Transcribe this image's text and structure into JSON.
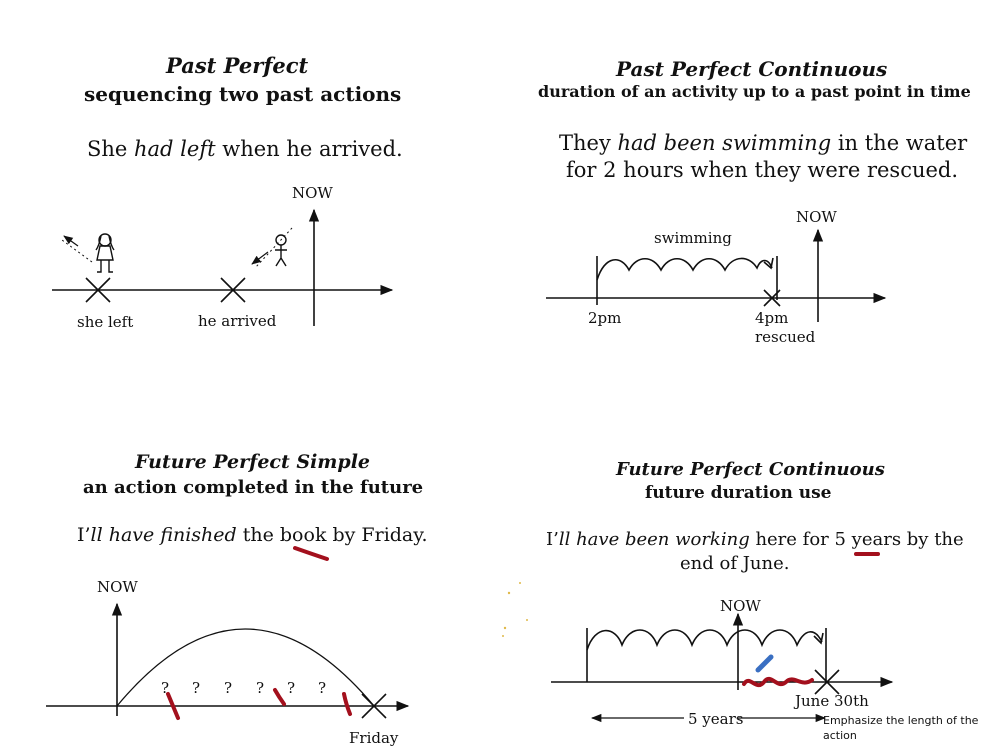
{
  "panels": {
    "past_perfect": {
      "title": "Past Perfect",
      "subtitle": "sequencing two past actions",
      "sentence": {
        "pre": "She ",
        "italic": "had left",
        "post": " when he arrived."
      },
      "now_label": "NOW",
      "labels": {
        "left": "she left",
        "arrived": "he arrived"
      }
    },
    "past_perfect_continuous": {
      "title": "Past Perfect Continuous",
      "subtitle": "duration of an activity up to a past point in time",
      "sentence_line1": {
        "pre": "They ",
        "italic": "had been swimming",
        "post": " in the water"
      },
      "sentence_line2": "for 2 hours when they were rescued.",
      "now_label": "NOW",
      "activity_label": "swimming",
      "labels": {
        "start": "2pm",
        "end": "4pm",
        "end_sub": "rescued"
      }
    },
    "future_perfect_simple": {
      "title": "Future Perfect Simple",
      "subtitle": "an action completed in the future",
      "sentence": {
        "pre": "I’",
        "italic": "ll have finished",
        "post": " the book by Friday."
      },
      "now_label": "NOW",
      "question_marks": [
        "?",
        "?",
        "?",
        "?",
        "?",
        "?"
      ],
      "labels": {
        "end": "Friday"
      }
    },
    "future_perfect_continuous": {
      "title": "Future Perfect Continuous",
      "subtitle": "future duration use",
      "sentence_line1": {
        "pre": "I’",
        "italic": "ll have been working",
        "post": " here for 5 years by the"
      },
      "sentence_line2": "end of June.",
      "now_label": "NOW",
      "labels": {
        "end": "June 30th",
        "span": "5 years"
      },
      "annotation": "Emphasize the length of the action"
    }
  },
  "colors": {
    "ink": "#111111",
    "marker": "#a3101d",
    "pen_icon": "#3a6fc2"
  }
}
